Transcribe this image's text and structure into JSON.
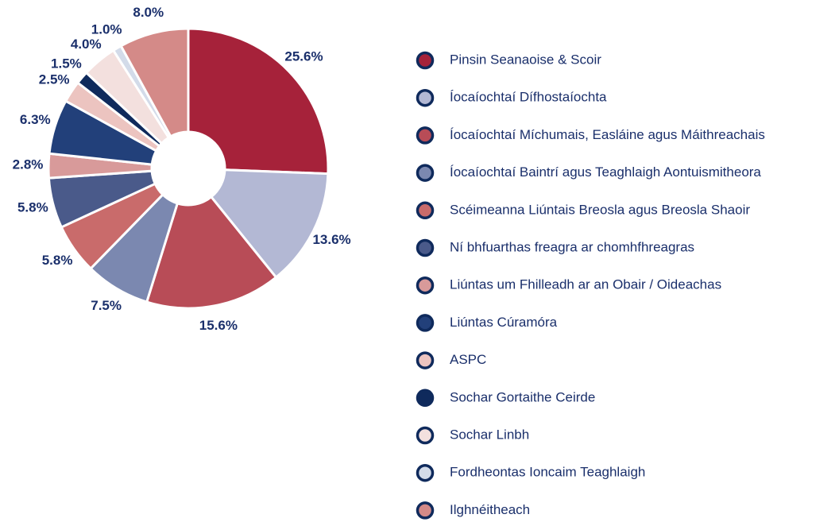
{
  "chart_data": {
    "type": "pie",
    "donut": true,
    "categories": [
      "Pinsin Seanaoise & Scoir",
      "Íocaíochtaí Dífhostaíochta",
      "Íocaíochtaí Míchumais, Easláine agus Máithreachais",
      "Íocaíochtaí Baintrí agus Teaghlaigh Aontuismitheora",
      "Scéimeanna Liúntais Breosla agus Breosla Shaoir",
      "Ní bhfuarthas freagra ar chomhfhreagras",
      "Liúntas um Fhilleadh ar an Obair / Oideachas",
      "Liúntas Cúramóra",
      "ASPC",
      "Sochar Gortaithe Ceirde",
      "Sochar Linbh",
      "Fordheontas Ioncaim Teaghlaigh",
      "Ilghnéitheach"
    ],
    "values": [
      25.6,
      13.6,
      15.6,
      7.5,
      5.8,
      5.8,
      2.8,
      6.3,
      2.5,
      1.5,
      4.0,
      1.0,
      8.0
    ],
    "value_labels": [
      "25.6%",
      "13.6%",
      "15.6%",
      "7.5%",
      "5.8%",
      "5.8%",
      "2.8%",
      "6.3%",
      "2.5%",
      "1.5%",
      "4.0%",
      "1.0%",
      "8.0%"
    ],
    "colors": [
      "#a6223a",
      "#b3b8d4",
      "#b84c57",
      "#7b88b0",
      "#c96b6b",
      "#4a5a8a",
      "#d89a9a",
      "#22407a",
      "#ecc4c0",
      "#0f2a5c",
      "#f3e0de",
      "#d3dbe9",
      "#d48a88"
    ],
    "legend": "right"
  }
}
